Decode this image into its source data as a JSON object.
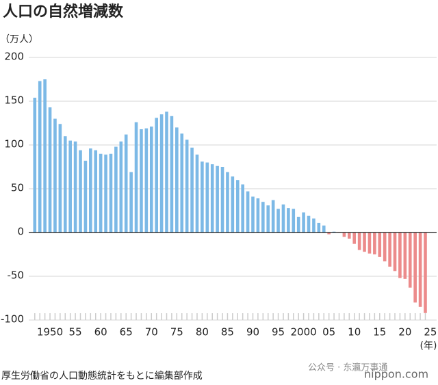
{
  "chart_data": {
    "type": "bar",
    "title": "人口の自然増減数",
    "y_label": "（万人）",
    "x_label": "(年)",
    "source": "厚生労働省の人口動態統計をもとに編集部作成",
    "watermark": "公众号 · 东瀛万事通",
    "brand": "nippon.com",
    "positive_color": "#7cb9e6",
    "negative_color": "#ec8b8b",
    "x": [
      1947,
      1948,
      1949,
      1950,
      1951,
      1952,
      1953,
      1954,
      1955,
      1956,
      1957,
      1958,
      1959,
      1960,
      1961,
      1962,
      1963,
      1964,
      1965,
      1966,
      1967,
      1968,
      1969,
      1970,
      1971,
      1972,
      1973,
      1974,
      1975,
      1976,
      1977,
      1978,
      1979,
      1980,
      1981,
      1982,
      1983,
      1984,
      1985,
      1986,
      1987,
      1988,
      1989,
      1990,
      1991,
      1992,
      1993,
      1994,
      1995,
      1996,
      1997,
      1998,
      1999,
      2000,
      2001,
      2002,
      2003,
      2004,
      2005,
      2006,
      2007,
      2008,
      2009,
      2010,
      2011,
      2012,
      2013,
      2014,
      2015,
      2016,
      2017,
      2018,
      2019,
      2020,
      2021,
      2022,
      2023,
      2024
    ],
    "values": [
      154,
      173,
      175,
      143,
      130,
      124,
      110,
      105,
      104,
      94,
      82,
      96,
      94,
      90,
      89,
      90,
      98,
      104,
      112,
      69,
      126,
      118,
      119,
      121,
      131,
      135,
      138,
      133,
      120,
      113,
      106,
      97,
      89,
      81,
      80,
      78,
      76,
      75,
      69,
      64,
      60,
      55,
      47,
      41,
      39,
      35,
      31,
      37,
      27,
      32,
      28,
      27,
      18,
      23,
      19,
      16,
      11,
      8,
      -2,
      1,
      -0.5,
      -5,
      -7,
      -13,
      -20,
      -22,
      -24,
      -25,
      -28,
      -33,
      -39,
      -44,
      -52,
      -53,
      -63,
      -80,
      -85,
      -92
    ],
    "xlim": [
      1946,
      2026
    ],
    "xticks": [
      1950,
      {
        "value": 1955,
        "label": "55"
      },
      {
        "value": 1960,
        "label": "60"
      },
      {
        "value": 1965,
        "label": "65"
      },
      {
        "value": 1970,
        "label": "70"
      },
      {
        "value": 1975,
        "label": "75"
      },
      {
        "value": 1980,
        "label": "80"
      },
      {
        "value": 1985,
        "label": "85"
      },
      {
        "value": 1990,
        "label": "90"
      },
      {
        "value": 1995,
        "label": "95"
      },
      2000,
      {
        "value": 2005,
        "label": "05"
      },
      {
        "value": 2010,
        "label": "10"
      },
      {
        "value": 2015,
        "label": "15"
      },
      {
        "value": 2020,
        "label": "20"
      },
      {
        "value": 2025,
        "label": "25"
      }
    ],
    "ylim": [
      -100,
      200
    ],
    "yticks": [
      -100,
      -50,
      0,
      50,
      100,
      150,
      200
    ],
    "grid": true
  }
}
